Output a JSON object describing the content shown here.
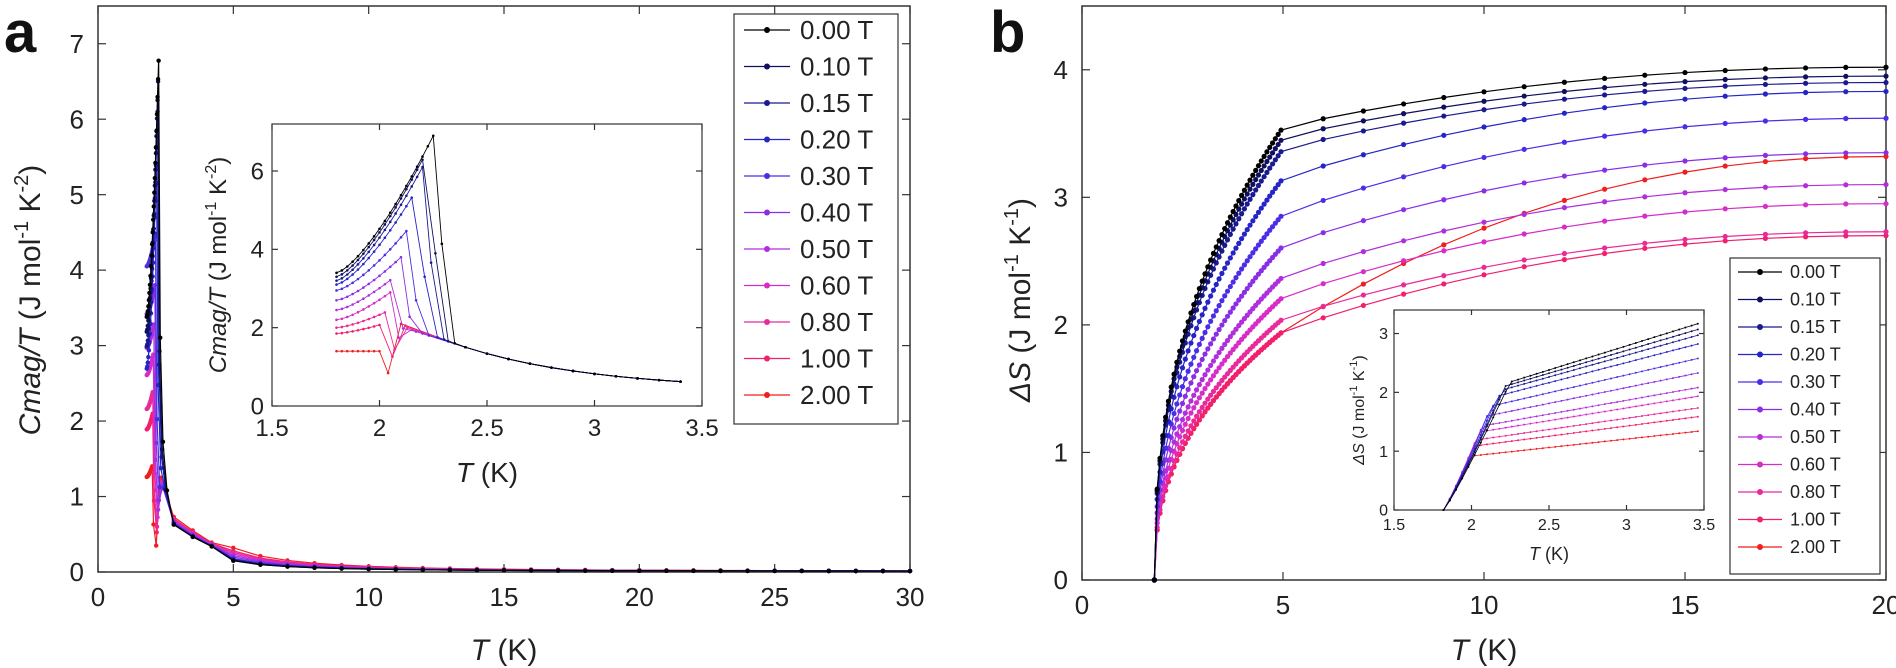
{
  "colors": [
    "#000000",
    "#101060",
    "#1a1a90",
    "#2424c8",
    "#4a2ee6",
    "#8a2ee6",
    "#b02edc",
    "#d62cc8",
    "#e82a9a",
    "#f21e6e",
    "#f01e1e"
  ],
  "labels": [
    "0.00 T",
    "0.10 T",
    "0.15 T",
    "0.20 T",
    "0.30 T",
    "0.40 T",
    "0.50 T",
    "0.60 T",
    "0.80 T",
    "1.00 T",
    "2.00 T"
  ],
  "panel_a": {
    "letter": "a",
    "xlabel_italic": "T",
    "xlabel_rest": " (K)",
    "ylabel_italic": "Cmag/T",
    "ylabel_rest": " (J mol",
    "ylabel_sup1": "-1",
    "ylabel_mid": " K",
    "ylabel_sup2": "-2",
    "ylabel_end": ")",
    "xticks": [
      "0",
      "5",
      "10",
      "15",
      "20",
      "25",
      "30"
    ],
    "yticks": [
      "0",
      "1",
      "2",
      "3",
      "4",
      "5",
      "6",
      "7"
    ],
    "inset_xticks": [
      "1.5",
      "2",
      "2.5",
      "3",
      "3.5"
    ],
    "inset_yticks": [
      "0",
      "2",
      "4",
      "6"
    ]
  },
  "panel_b": {
    "letter": "b",
    "xlabel_italic": "T",
    "xlabel_rest": " (K)",
    "ylabel_italic": "ΔS",
    "ylabel_rest": " (J mol",
    "ylabel_sup1": "-1",
    "ylabel_mid": " K",
    "ylabel_sup2": "-1",
    "ylabel_end": ")",
    "xticks": [
      "0",
      "5",
      "10",
      "15",
      "20"
    ],
    "yticks": [
      "0",
      "1",
      "2",
      "3",
      "4"
    ],
    "inset_xticks": [
      "1.5",
      "2",
      "2.5",
      "3",
      "3.5"
    ],
    "inset_yticks": [
      "0",
      "1",
      "2",
      "3"
    ]
  },
  "chart_data": [
    {
      "type": "line",
      "panel": "a",
      "xlabel": "T (K)",
      "ylabel": "Cmag/T (J mol-1 K-2)",
      "xlim": [
        0,
        30
      ],
      "ylim": [
        0,
        7.5
      ],
      "legend": "top-right",
      "peak_T": [
        2.25,
        2.22,
        2.2,
        2.17,
        2.13,
        2.1,
        2.07,
        2.05,
        2.03,
        2.02,
        2.0
      ],
      "peak_value": [
        6.9,
        6.5,
        6.1,
        5.5,
        4.5,
        3.8,
        3.3,
        2.9,
        2.4,
        2.1,
        1.4
      ],
      "high_T_value_at_5K": [
        0.13,
        0.13,
        0.14,
        0.15,
        0.16,
        0.18,
        0.2,
        0.22,
        0.24,
        0.26,
        0.3
      ]
    },
    {
      "type": "line",
      "panel": "a-inset",
      "xlabel": "T (K)",
      "ylabel": "Cmag/T (J mol-1 K-2)",
      "xlim": [
        1.5,
        3.5
      ],
      "ylim": [
        0,
        7.2
      ],
      "value_at_1_8K": [
        3.4,
        3.3,
        3.2,
        3.1,
        2.95,
        2.7,
        2.45,
        2.2,
        2.0,
        1.85,
        1.4
      ]
    },
    {
      "type": "line",
      "panel": "b",
      "xlabel": "T (K)",
      "ylabel": "ΔS (J mol-1 K-1)",
      "xlim": [
        0,
        20
      ],
      "ylim": [
        0,
        4.5
      ],
      "legend": "bottom-right",
      "start_T": 1.8,
      "value_at_20K": [
        4.02,
        3.95,
        3.9,
        3.83,
        3.62,
        3.35,
        3.1,
        2.95,
        2.73,
        2.7,
        3.32
      ],
      "value_at_5K": [
        3.55,
        3.47,
        3.38,
        3.15,
        2.87,
        2.62,
        2.38,
        2.22,
        2.05,
        1.95,
        1.95
      ]
    },
    {
      "type": "line",
      "panel": "b-inset",
      "xlabel": "T (K)",
      "ylabel": "ΔS (J mol-1 K-1)",
      "xlim": [
        1.5,
        3.5
      ],
      "ylim": [
        0,
        3.4
      ],
      "value_at_3_5K": [
        3.2,
        3.1,
        3.0,
        2.85,
        2.6,
        2.35,
        2.1,
        1.95,
        1.75,
        1.6,
        1.35
      ]
    }
  ]
}
